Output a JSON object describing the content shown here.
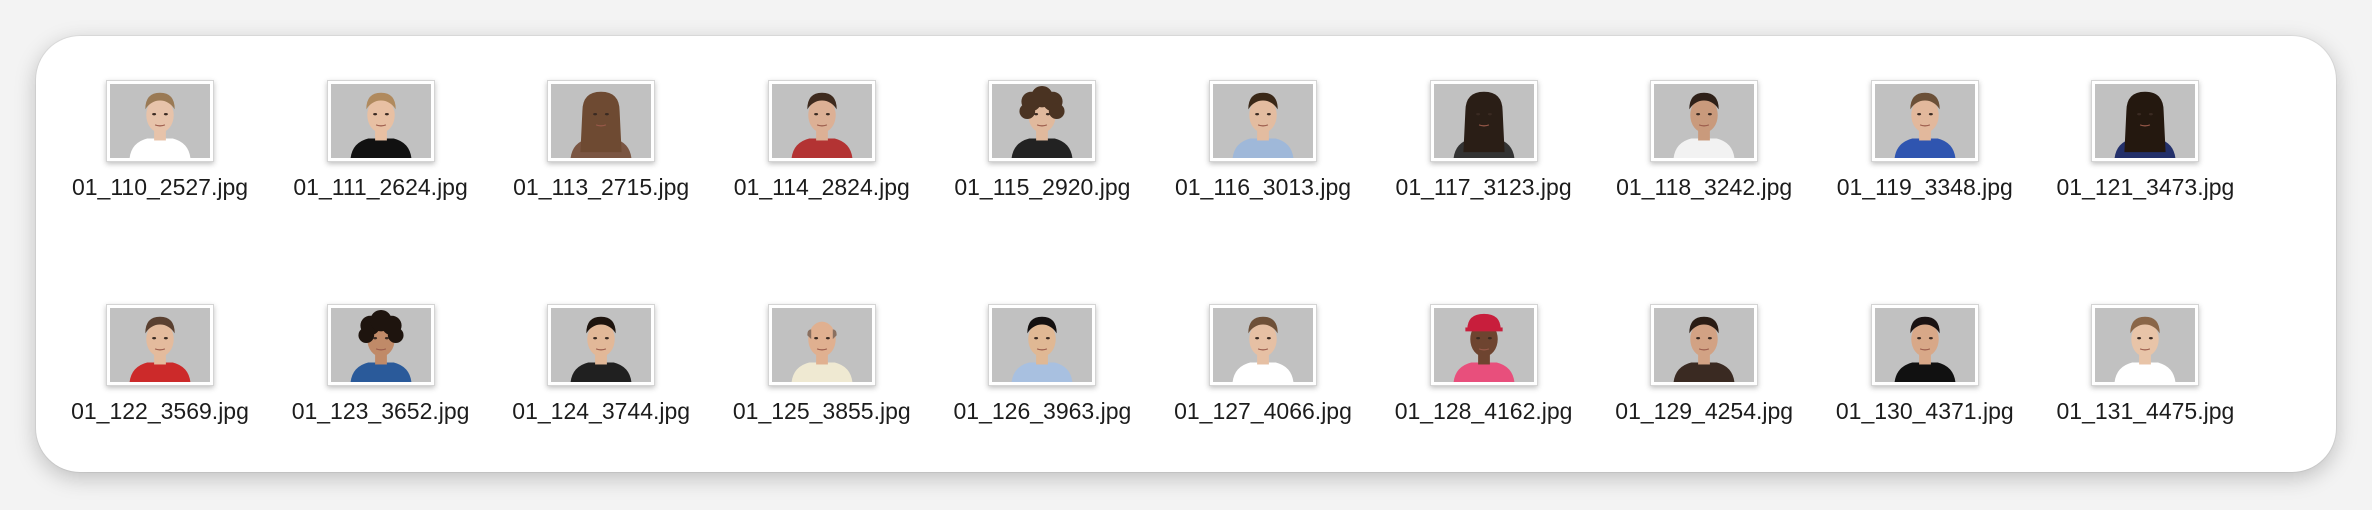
{
  "files": [
    {
      "name": "01_110_2527.jpg",
      "hair": "#9a7a55",
      "skin": "#e7c3aa",
      "shirt": "#ffffff",
      "style": "short"
    },
    {
      "name": "01_111_2624.jpg",
      "hair": "#b08a5e",
      "skin": "#e8c0a3",
      "shirt": "#111111",
      "style": "short"
    },
    {
      "name": "01_113_2715.jpg",
      "hair": "#6e4a32",
      "skin": "#e6bda4",
      "shirt": "#7a5542",
      "style": "long"
    },
    {
      "name": "01_114_2824.jpg",
      "hair": "#3e2a1e",
      "skin": "#dcb095",
      "shirt": "#b33333",
      "style": "short"
    },
    {
      "name": "01_115_2920.jpg",
      "hair": "#4a3322",
      "skin": "#e0b99d",
      "shirt": "#222222",
      "style": "curly"
    },
    {
      "name": "01_116_3013.jpg",
      "hair": "#3a2818",
      "skin": "#e3bca0",
      "shirt": "#9fb8d9",
      "style": "short"
    },
    {
      "name": "01_117_3123.jpg",
      "hair": "#2a1e16",
      "skin": "#e3bca0",
      "shirt": "#333333",
      "style": "long"
    },
    {
      "name": "01_118_3242.jpg",
      "hair": "#2e2018",
      "skin": "#c99a7c",
      "shirt": "#f2f2f2",
      "style": "short"
    },
    {
      "name": "01_119_3348.jpg",
      "hair": "#6b5038",
      "skin": "#e2b89c",
      "shirt": "#2f55b0",
      "style": "short"
    },
    {
      "name": "01_121_3473.jpg",
      "hair": "#24180f",
      "skin": "#d4a585",
      "shirt": "#23306a",
      "style": "long"
    },
    {
      "name": "01_122_3569.jpg",
      "hair": "#5a4030",
      "skin": "#e4bb9d",
      "shirt": "#cc2a2a",
      "style": "short"
    },
    {
      "name": "01_123_3652.jpg",
      "hair": "#1e140e",
      "skin": "#c08a68",
      "shirt": "#2a5a9a",
      "style": "curly"
    },
    {
      "name": "01_124_3744.jpg",
      "hair": "#1e140e",
      "skin": "#e2b898",
      "shirt": "#202020",
      "style": "short"
    },
    {
      "name": "01_125_3855.jpg",
      "hair": "#8a7060",
      "skin": "#e0b090",
      "shirt": "#efe9d2",
      "style": "bald"
    },
    {
      "name": "01_126_3963.jpg",
      "hair": "#141010",
      "skin": "#e0b894",
      "shirt": "#a8c0e0",
      "style": "short"
    },
    {
      "name": "01_127_4066.jpg",
      "hair": "#6e5038",
      "skin": "#e6c0a4",
      "shirt": "#ffffff",
      "style": "short"
    },
    {
      "name": "01_128_4162.jpg",
      "hair": "#c81e3c",
      "skin": "#6e4430",
      "shirt": "#e84f7c",
      "style": "cap"
    },
    {
      "name": "01_129_4254.jpg",
      "hair": "#2a1c14",
      "skin": "#d2a284",
      "shirt": "#3a2a22",
      "style": "short"
    },
    {
      "name": "01_130_4371.jpg",
      "hair": "#1a1212",
      "skin": "#d8a888",
      "shirt": "#111111",
      "style": "short"
    },
    {
      "name": "01_131_4475.jpg",
      "hair": "#8a6648",
      "skin": "#e8c4a8",
      "shirt": "#ffffff",
      "style": "short"
    }
  ]
}
